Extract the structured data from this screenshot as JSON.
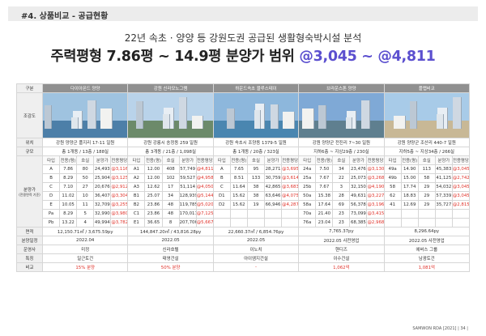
{
  "header": {
    "title": "#4. 상품비교 - 공급현황"
  },
  "subtitle": "22년 속초 · 양양 등 강원도권 공급된 생활형숙박시설 분석",
  "headline": {
    "prefix": "주력평형 7.86평 ~ 14.9평 분양가 범위 ",
    "highlight": "@3,045 ~ @4,811"
  },
  "row_labels": {
    "division": "구분",
    "render": "조감도",
    "location": "위치",
    "scale": "규모",
    "price": "분양가",
    "price_note": "(전용면적 기준)",
    "area": "면적",
    "sale_date": "분양일정",
    "developer": "운영사",
    "feature": "특징",
    "compare": "비교"
  },
  "type_header": {
    "type": "타입",
    "area": "전용(평)",
    "rooms": "호실",
    "price": "분양가",
    "unit": "전용평당"
  },
  "projects": [
    {
      "name": "다이아몬드 양양",
      "location": "강원 양양군 플지리 17-11 일원",
      "scale": "총 1개동 / 13층 / 188실",
      "area": "12,150.71㎡ / 3,675.59py",
      "sale_date": "2022.04",
      "developer": "미정",
      "feature": "일근토건",
      "compare": "15% 분양",
      "types": [
        {
          "type": "A",
          "area": "7.86",
          "rooms": "80",
          "price": "24,493",
          "unit": "@3,116"
        },
        {
          "type": "B",
          "area": "8.29",
          "rooms": "50",
          "price": "25,904",
          "unit": "@3,125"
        },
        {
          "type": "C",
          "area": "7.10",
          "rooms": "27",
          "price": "20,676",
          "unit": "@2,912"
        },
        {
          "type": "D",
          "area": "11.02",
          "rooms": "10",
          "price": "36,407",
          "unit": "@3,304"
        },
        {
          "type": "E",
          "area": "10.05",
          "rooms": "11",
          "price": "32,709",
          "unit": "@3,255"
        },
        {
          "type": "Pa",
          "area": "8.29",
          "rooms": "5",
          "price": "32,990",
          "unit": "@3,980"
        },
        {
          "type": "Pb",
          "area": "13.22",
          "rooms": "4",
          "price": "49,994",
          "unit": "@3,782"
        }
      ]
    },
    {
      "name": "강원 신라모노그램",
      "location": "강원 강릉시 송정동 259 일원",
      "scale": "총 3개동 / 21층 / 1,098실",
      "area": "144,847.20㎡ / 43,816.28py",
      "sale_date": "2022.05",
      "developer": "신라호텔",
      "feature": "태영건설",
      "compare": "50% 분양",
      "types": [
        {
          "type": "A1",
          "area": "12.00",
          "rooms": "408",
          "price": "57,749",
          "unit": "@4,811"
        },
        {
          "type": "A2",
          "area": "12.00",
          "rooms": "102",
          "price": "59,527",
          "unit": "@4,958"
        },
        {
          "type": "A3",
          "area": "12.62",
          "rooms": "17",
          "price": "51,114",
          "unit": "@4,050"
        },
        {
          "type": "B1",
          "area": "25.07",
          "rooms": "34",
          "price": "128,939",
          "unit": "@5,144"
        },
        {
          "type": "B2",
          "area": "23.86",
          "rooms": "48",
          "price": "119,785",
          "unit": "@5,020"
        },
        {
          "type": "C1",
          "area": "23.86",
          "rooms": "48",
          "price": "170,011",
          "unit": "@7,125"
        },
        {
          "type": "E1",
          "area": "36.65",
          "rooms": "8",
          "price": "207,706",
          "unit": "@5,667"
        }
      ]
    },
    {
      "name": "하운드속초 블루스테이",
      "location": "강원 속초시 조양동 1379-5 일원",
      "scale": "총 1개동 / 20층 / 323실",
      "area": "22,660.37㎡ / 6,854.76py",
      "sale_date": "2022.05",
      "developer": "이노치",
      "feature": "아이엠지건설",
      "compare": "-",
      "types": [
        {
          "type": "A",
          "area": "7.65",
          "rooms": "95",
          "price": "28,271",
          "unit": "@3,695"
        },
        {
          "type": "B",
          "area": "8.51",
          "rooms": "133",
          "price": "30,759",
          "unit": "@3,614"
        },
        {
          "type": "C",
          "area": "11.64",
          "rooms": "38",
          "price": "42,865",
          "unit": "@3,683"
        },
        {
          "type": "D1",
          "area": "15.62",
          "rooms": "38",
          "price": "63,646",
          "unit": "@4,075"
        },
        {
          "type": "D2",
          "area": "15.62",
          "rooms": "19",
          "price": "66,946",
          "unit": "@4,287"
        },
        {
          "type": "",
          "area": "",
          "rooms": "",
          "price": "",
          "unit": ""
        },
        {
          "type": "",
          "area": "",
          "rooms": "",
          "price": "",
          "unit": ""
        }
      ]
    },
    {
      "name": "브라운스톤 양양",
      "location": "강원 양양군 전진리 7~30 일원",
      "scale": "지하6층 ~ 지상29층 / 230실",
      "area": "7,765.37py",
      "sale_date": "2022.05 사전영업",
      "developer": "핸디즈",
      "feature": "이수건설",
      "compare": "1,062억",
      "types": [
        {
          "type": "24a",
          "area": "7.50",
          "rooms": "34",
          "price": "23,476",
          "unit": "@3,130"
        },
        {
          "type": "25a",
          "area": "7.67",
          "rooms": "22",
          "price": "25,073",
          "unit": "@3,268"
        },
        {
          "type": "25b",
          "area": "7.67",
          "rooms": "3",
          "price": "32,150",
          "unit": "@4,190"
        },
        {
          "type": "50a",
          "area": "15.38",
          "rooms": "28",
          "price": "49,631",
          "unit": "@3,227"
        },
        {
          "type": "58a",
          "area": "17.64",
          "rooms": "69",
          "price": "56,378",
          "unit": "@3,196"
        },
        {
          "type": "70a",
          "area": "21.40",
          "rooms": "23",
          "price": "73,099",
          "unit": "@3,415"
        },
        {
          "type": "76a",
          "area": "23.04",
          "rooms": "23",
          "price": "68,385",
          "unit": "@2,968"
        }
      ]
    },
    {
      "name": "플랩비코",
      "location": "강원 양양군 조산리 440-7 일원",
      "scale": "지하5층 ~ 지상34층 / 266실",
      "area": "8,296.64py",
      "sale_date": "2022.05 사전영업",
      "developer": "에버스 그룹",
      "feature": "남광토건",
      "compare": "1,081억",
      "types": [
        {
          "type": "49a",
          "area": "14.90",
          "rooms": "113",
          "price": "45,383",
          "unit": "@3,045"
        },
        {
          "type": "49b",
          "area": "15.00",
          "rooms": "58",
          "price": "41,125",
          "unit": "@2,742"
        },
        {
          "type": "58",
          "area": "17.74",
          "rooms": "29",
          "price": "54,032",
          "unit": "@3,045"
        },
        {
          "type": "62",
          "area": "18.83",
          "rooms": "29",
          "price": "57,339",
          "unit": "@3,045"
        },
        {
          "type": "41",
          "area": "12.69",
          "rooms": "29",
          "price": "35,727",
          "unit": "@2,815"
        },
        {
          "type": "",
          "area": "",
          "rooms": "",
          "price": "",
          "unit": ""
        },
        {
          "type": "",
          "area": "",
          "rooms": "",
          "price": "",
          "unit": ""
        }
      ]
    }
  ],
  "footer": "SAMWON RDA [2021] | 34 |",
  "colors": {
    "accent": "#5b4fcf",
    "red": "#e0322a",
    "name_bg": "#909090"
  }
}
